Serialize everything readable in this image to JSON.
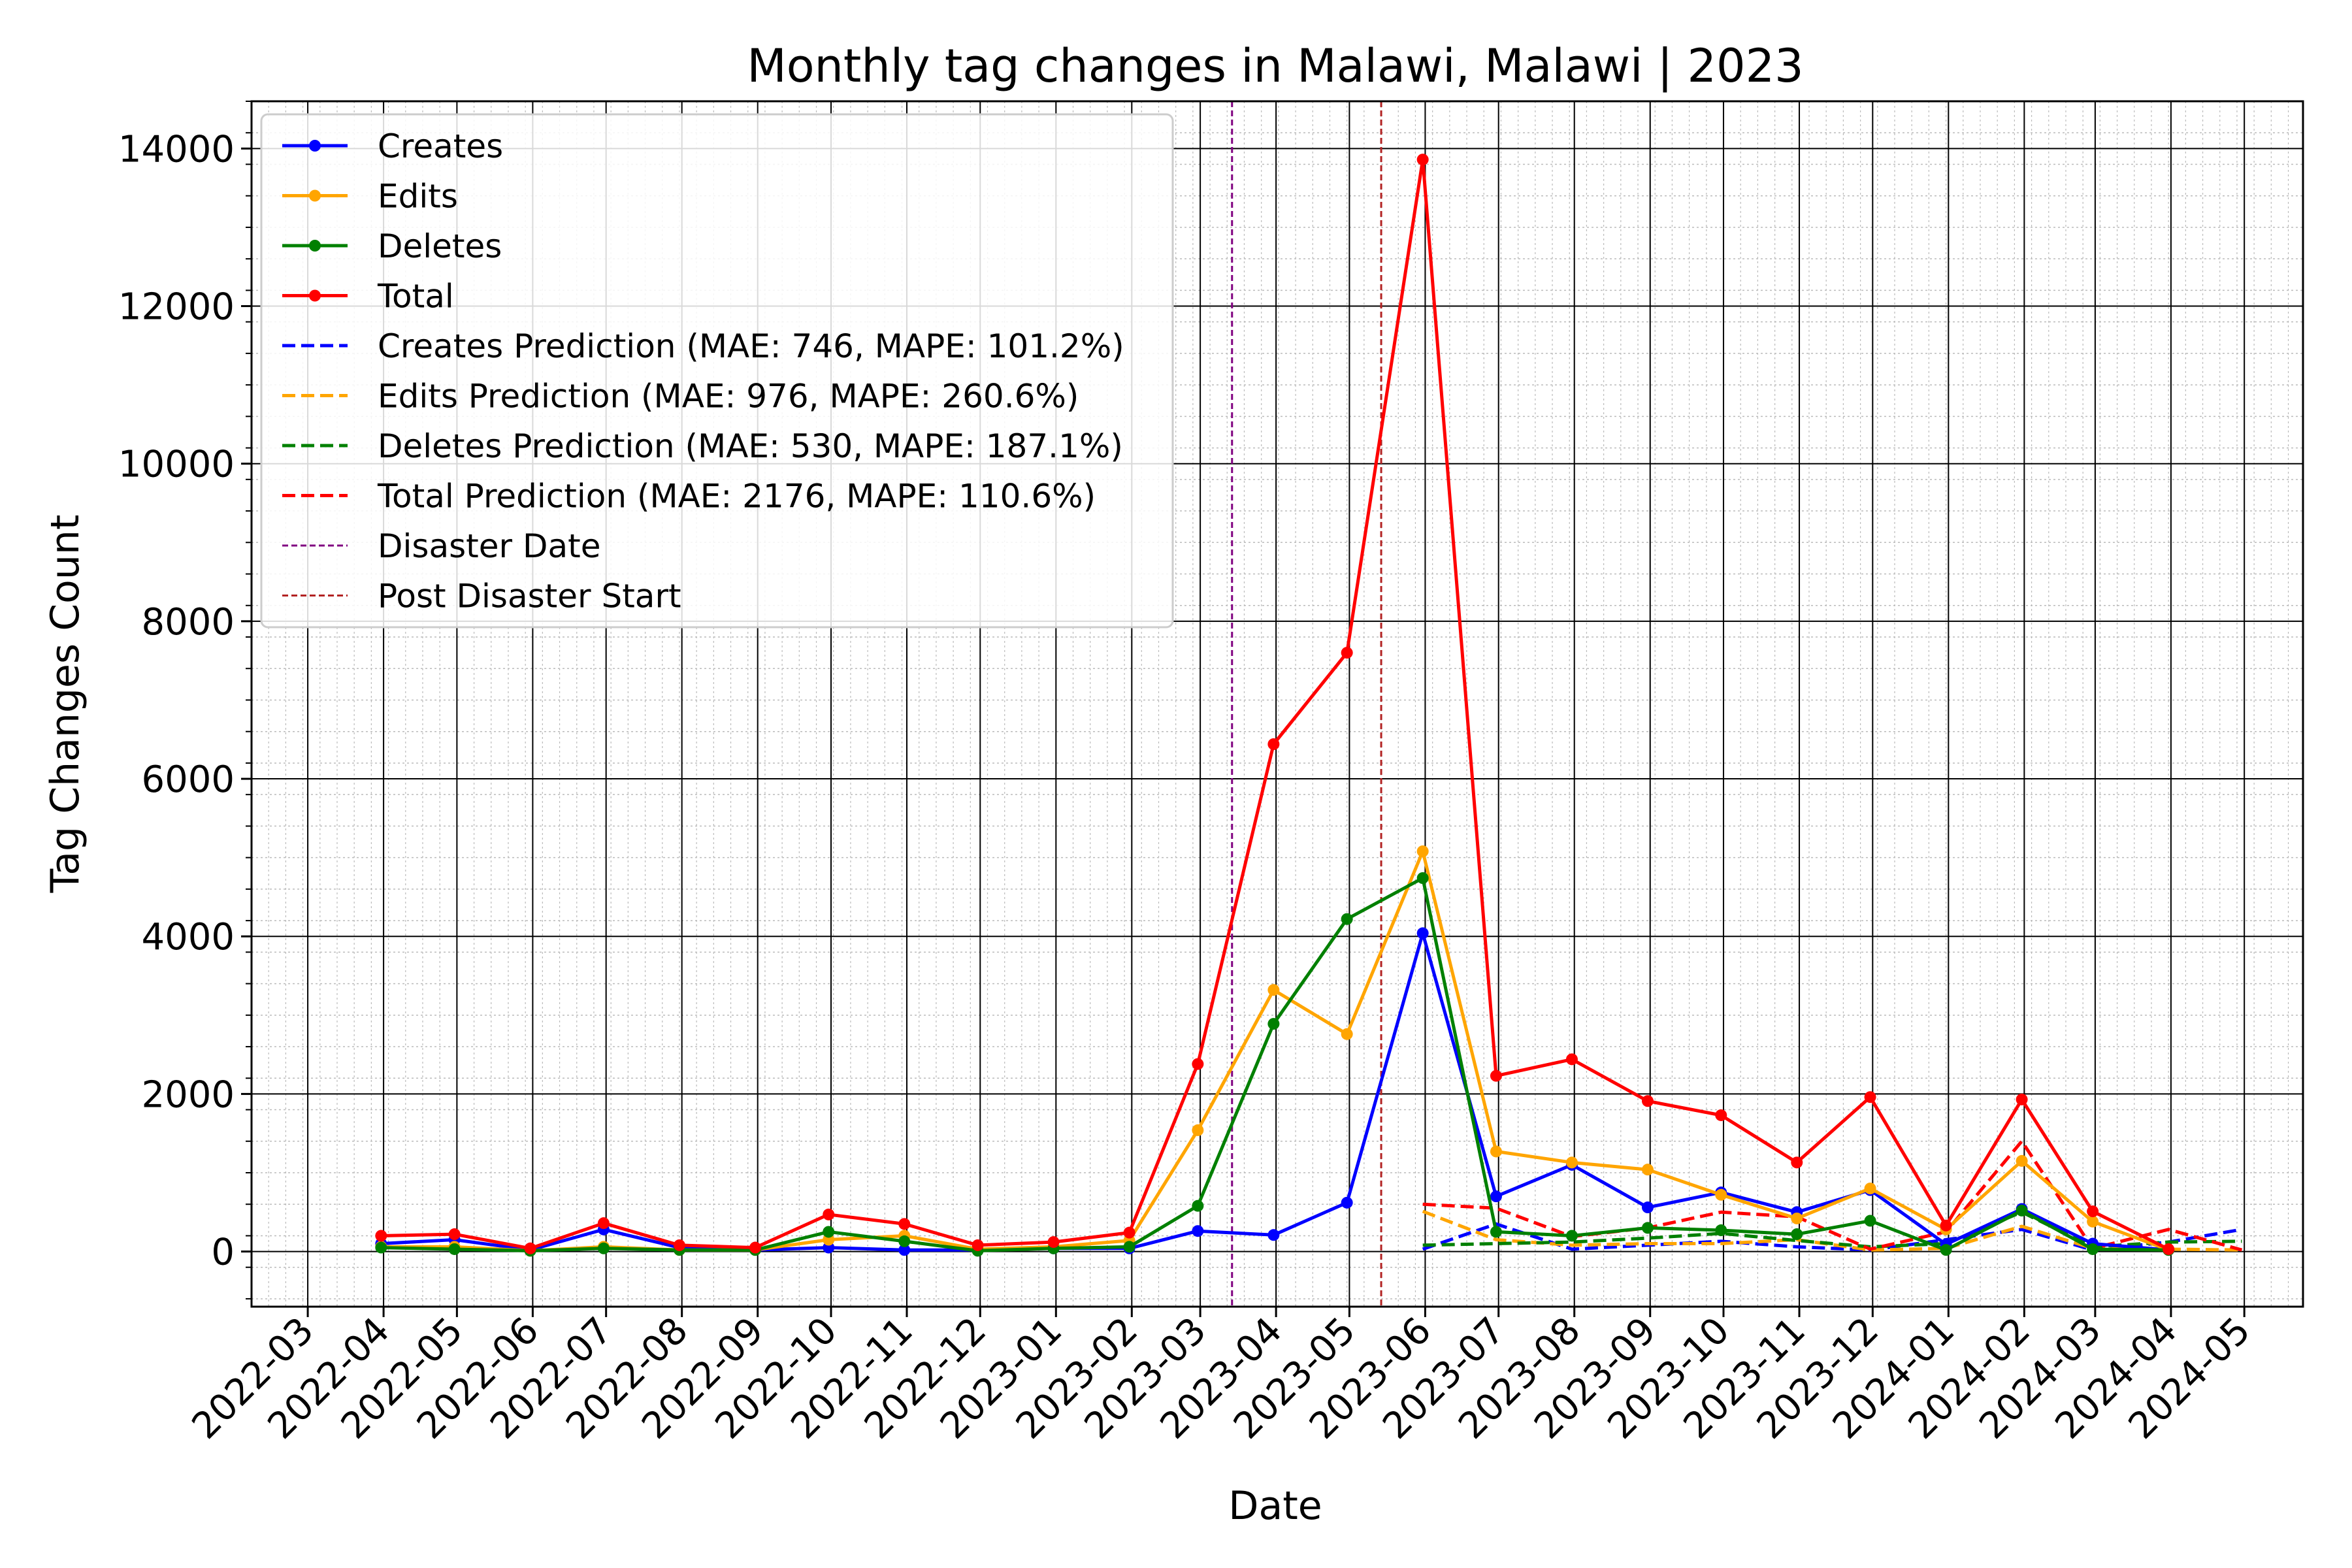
{
  "chart_data": {
    "type": "line",
    "title": "Monthly tag changes in Malawi, Malawi | 2023",
    "xlabel": "Date",
    "ylabel": "Tag Changes Count",
    "ylim": [
      -700,
      14600
    ],
    "y_ticks": [
      0,
      2000,
      4000,
      6000,
      8000,
      10000,
      12000,
      14000
    ],
    "x_ticks": [
      "2022-03",
      "2022-04",
      "2022-05",
      "2022-06",
      "2022-07",
      "2022-08",
      "2022-09",
      "2022-10",
      "2022-11",
      "2022-12",
      "2023-01",
      "2023-02",
      "2023-03",
      "2023-04",
      "2023-05",
      "2023-06",
      "2023-07",
      "2023-08",
      "2023-09",
      "2023-10",
      "2023-11",
      "2023-12",
      "2024-01",
      "2024-02",
      "2024-03",
      "2024-04",
      "2024-05"
    ],
    "grid": true,
    "legend_position": "upper-left",
    "x": [
      "2022-03-31",
      "2022-04-30",
      "2022-05-31",
      "2022-06-30",
      "2022-07-31",
      "2022-08-31",
      "2022-09-30",
      "2022-10-31",
      "2022-11-30",
      "2022-12-31",
      "2023-01-31",
      "2023-02-28",
      "2023-03-31",
      "2023-04-30",
      "2023-05-31",
      "2023-06-30",
      "2023-07-31",
      "2023-08-31",
      "2023-09-30",
      "2023-10-31",
      "2023-11-30",
      "2023-12-31",
      "2024-01-31",
      "2024-02-29",
      "2024-03-31"
    ],
    "series": [
      {
        "name": "Creates",
        "color": "#0000ff",
        "style": "solid",
        "marker": true,
        "values": [
          100,
          150,
          20,
          280,
          50,
          20,
          50,
          20,
          20,
          40,
          40,
          260,
          210,
          620,
          4040,
          700,
          1100,
          560,
          750,
          500,
          780,
          90,
          540,
          100,
          20
        ]
      },
      {
        "name": "Edits",
        "color": "#ffa500",
        "style": "solid",
        "marker": true,
        "values": [
          60,
          60,
          10,
          60,
          20,
          20,
          150,
          200,
          30,
          60,
          140,
          1540,
          3320,
          2760,
          5080,
          1270,
          1130,
          1040,
          720,
          420,
          800,
          280,
          1150,
          380,
          20
        ]
      },
      {
        "name": "Deletes",
        "color": "#008000",
        "style": "solid",
        "marker": true,
        "values": [
          50,
          30,
          10,
          40,
          20,
          20,
          250,
          130,
          10,
          40,
          60,
          580,
          2890,
          4220,
          4740,
          250,
          200,
          300,
          270,
          220,
          390,
          20,
          520,
          30,
          20
        ]
      },
      {
        "name": "Total",
        "color": "#ff0000",
        "style": "solid",
        "marker": true,
        "values": [
          200,
          220,
          40,
          360,
          80,
          50,
          470,
          350,
          80,
          120,
          240,
          2380,
          6440,
          7600,
          13860,
          2230,
          2440,
          1910,
          1730,
          1130,
          1960,
          330,
          1930,
          510,
          30
        ]
      },
      {
        "name": "Creates Prediction (MAE: 746, MAPE: 101.2%)",
        "color": "#0000ff",
        "style": "dashed",
        "marker": false,
        "x": [
          "2023-05-31",
          "2023-06-30",
          "2023-07-31",
          "2023-08-31",
          "2023-09-30",
          "2023-10-31",
          "2023-11-30",
          "2023-12-31",
          "2024-01-31",
          "2024-02-29",
          "2024-03-31",
          "2024-04-30"
        ],
        "values": [
          30,
          350,
          30,
          80,
          130,
          60,
          20,
          150,
          280,
          20,
          120,
          280
        ]
      },
      {
        "name": "Edits Prediction (MAE: 976, MAPE: 260.6%)",
        "color": "#ffa500",
        "style": "dashed",
        "marker": false,
        "x": [
          "2023-05-31",
          "2023-06-30",
          "2023-07-31",
          "2023-08-31",
          "2023-09-30",
          "2023-10-31",
          "2023-11-30",
          "2023-12-31",
          "2024-01-31",
          "2024-02-29",
          "2024-03-31",
          "2024-04-30"
        ],
        "values": [
          510,
          150,
          80,
          100,
          100,
          150,
          20,
          40,
          320,
          40,
          30,
          20
        ]
      },
      {
        "name": "Deletes Prediction (MAE: 530, MAPE: 187.1%)",
        "color": "#008000",
        "style": "dashed",
        "marker": false,
        "x": [
          "2023-05-31",
          "2023-06-30",
          "2023-07-31",
          "2023-08-31",
          "2023-09-30",
          "2023-10-31",
          "2023-11-30",
          "2023-12-31",
          "2024-01-31",
          "2024-02-29",
          "2024-03-31",
          "2024-04-30"
        ],
        "values": [
          80,
          100,
          120,
          170,
          230,
          140,
          60,
          100,
          500,
          60,
          120,
          130
        ]
      },
      {
        "name": "Total Prediction (MAE: 2176, MAPE: 110.6%)",
        "color": "#ff0000",
        "style": "dashed",
        "marker": false,
        "x": [
          "2023-05-31",
          "2023-06-30",
          "2023-07-31",
          "2023-08-31",
          "2023-09-30",
          "2023-10-31",
          "2023-11-30",
          "2023-12-31",
          "2024-01-31",
          "2024-02-29",
          "2024-03-31",
          "2024-04-30"
        ],
        "values": [
          600,
          550,
          190,
          300,
          500,
          440,
          30,
          250,
          1400,
          40,
          280,
          20
        ]
      }
    ],
    "vlines": [
      {
        "name": "Disaster Date",
        "color": "#800080",
        "x": "2023-03-14"
      },
      {
        "name": "Post Disaster Start",
        "color": "#b22222",
        "x": "2023-05-14"
      }
    ]
  }
}
